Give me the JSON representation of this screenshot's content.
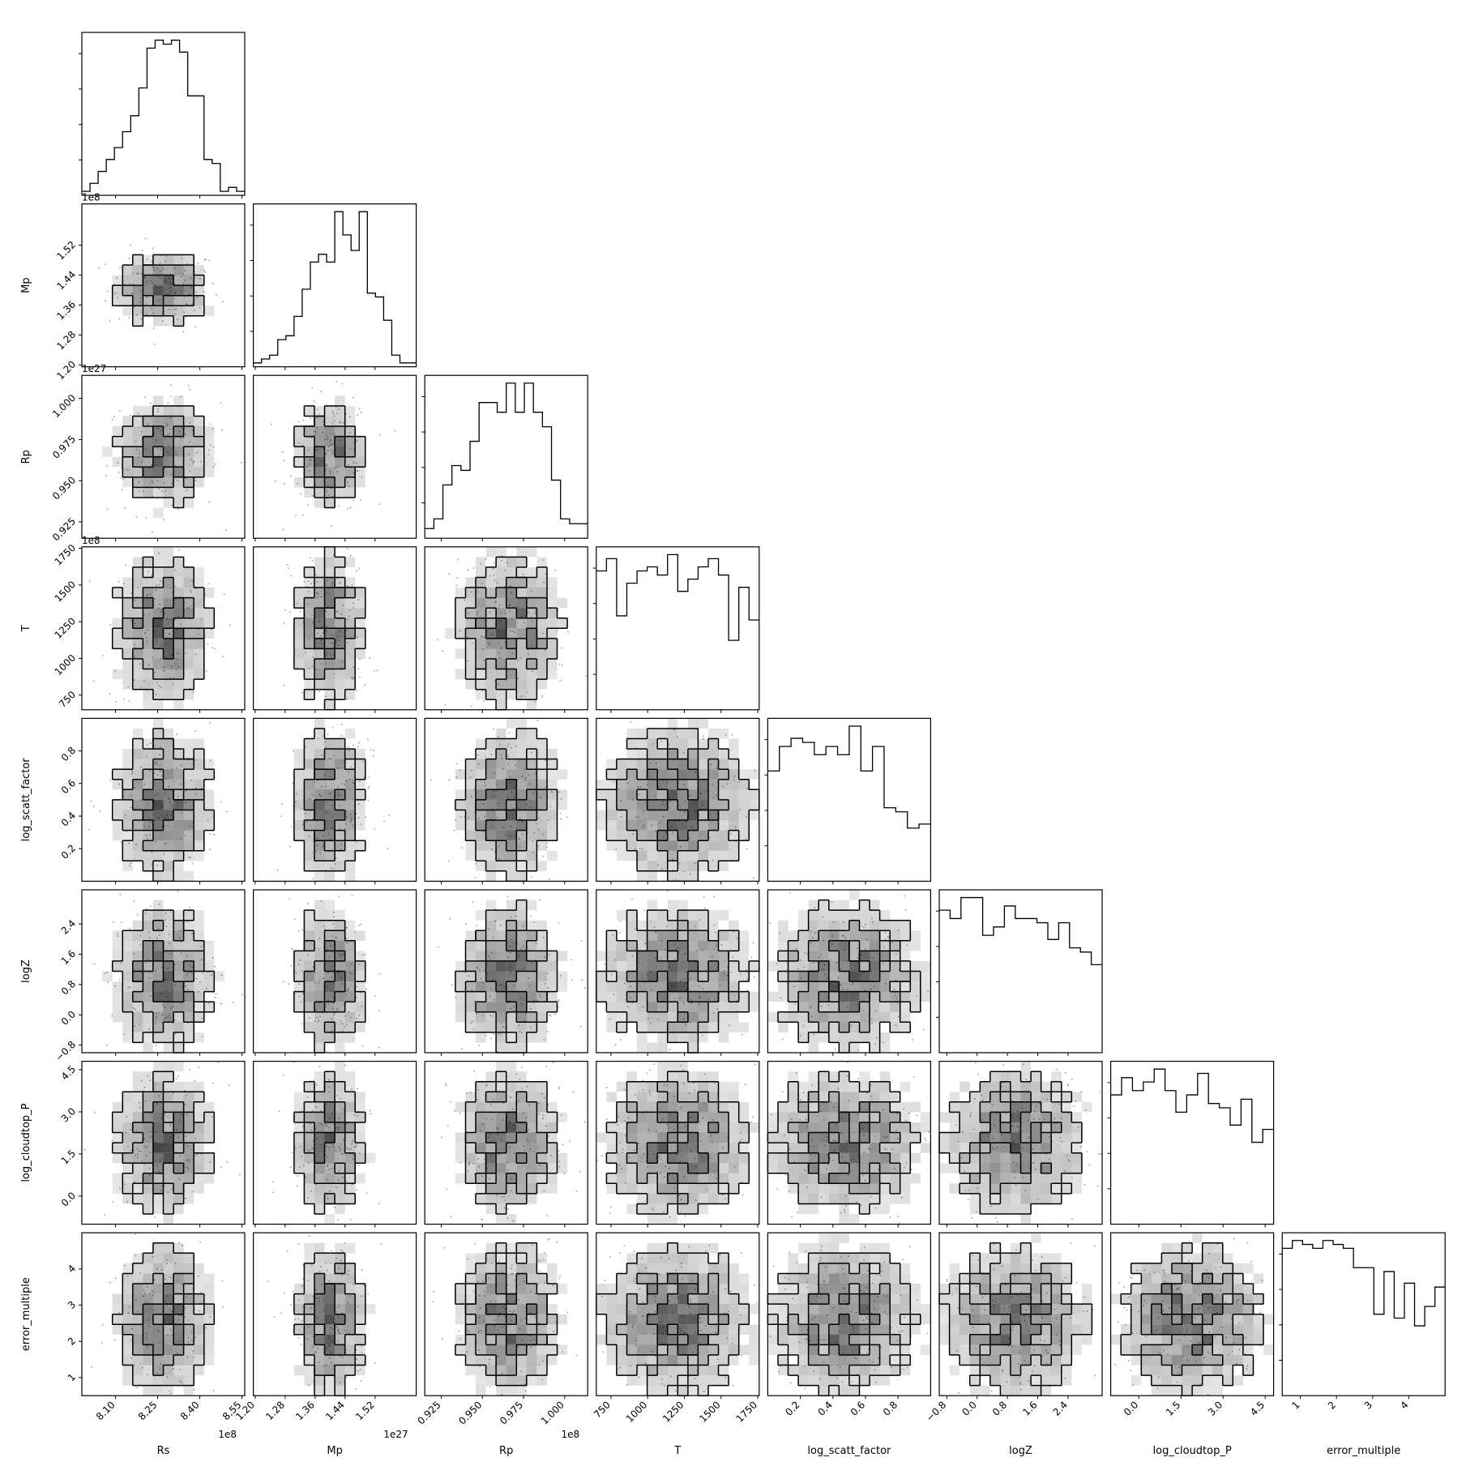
{
  "chart_data": {
    "type": "corner",
    "parameters": [
      {
        "label": "Rs",
        "range": [
          798000000.0,
          856000000.0
        ],
        "ticks": [
          810000000.0,
          825000000.0,
          840000000.0,
          855000000.0
        ],
        "tick_labels": [
          "8.10",
          "8.25",
          "8.40",
          "8.55"
        ],
        "offset_text": "1e8",
        "center": 827000000.0,
        "std": 10000000.0
      },
      {
        "label": "Mp",
        "range": [
          1.195e+27,
          1.63e+27
        ],
        "ticks": [
          1.2e+27,
          1.28e+27,
          1.36e+27,
          1.44e+27,
          1.52e+27
        ],
        "tick_labels": [
          "1.20",
          "1.28",
          "1.36",
          "1.44",
          "1.52"
        ],
        "offset_text": "1e27",
        "center": 1.4e+27,
        "std": 5.5e+25
      },
      {
        "label": "Rp",
        "range": [
          91500000.0,
          101400000.0
        ],
        "ticks": [
          92500000.0,
          95000000.0,
          97500000.0,
          100000000.0
        ],
        "tick_labels": [
          "0.925",
          "0.950",
          "0.975",
          "1.000"
        ],
        "offset_text": "1e8",
        "center": 96600000.0,
        "std": 1800000.0
      },
      {
        "label": "T",
        "range": [
          650,
          1760
        ],
        "ticks": [
          750,
          1000,
          1250,
          1500,
          1750
        ],
        "tick_labels": [
          "750",
          "1000",
          "1250",
          "1500",
          "1750"
        ],
        "offset_text": "",
        "center": 1200,
        "std": 300
      },
      {
        "label": "log_scatt_factor",
        "range": [
          0.0,
          1.0
        ],
        "ticks": [
          0.2,
          0.4,
          0.6,
          0.8
        ],
        "tick_labels": [
          "0.2",
          "0.4",
          "0.6",
          "0.8"
        ],
        "offset_text": "",
        "center": 0.48,
        "std": 0.27
      },
      {
        "label": "logZ",
        "range": [
          -1.0,
          3.3
        ],
        "ticks": [
          -0.8,
          0.0,
          0.8,
          1.6,
          2.4
        ],
        "tick_labels": [
          "−0.8",
          "0.0",
          "0.8",
          "1.6",
          "2.4"
        ],
        "offset_text": "",
        "center": 1.0,
        "std": 1.1
      },
      {
        "label": "log_cloudtop_P",
        "range": [
          -1.0,
          4.8
        ],
        "ticks": [
          0.0,
          1.5,
          3.0,
          4.5
        ],
        "tick_labels": [
          "0.0",
          "1.5",
          "3.0",
          "4.5"
        ],
        "offset_text": "",
        "center": 1.9,
        "std": 1.5
      },
      {
        "label": "error_multiple",
        "range": [
          0.5,
          5.0
        ],
        "ticks": [
          1,
          2,
          3,
          4
        ],
        "tick_labels": [
          "1",
          "2",
          "3",
          "4"
        ],
        "offset_text": "",
        "center": 2.6,
        "std": 1.2
      }
    ],
    "histograms": [
      [
        1,
        3,
        6,
        9,
        12,
        16,
        20,
        27,
        37,
        39,
        38,
        39,
        36,
        25,
        25,
        9,
        8,
        1,
        2,
        1
      ],
      [
        1,
        2,
        3,
        7,
        8,
        13,
        20,
        27,
        29,
        27,
        40,
        34,
        30,
        40,
        19,
        18,
        12,
        3,
        1,
        1
      ],
      [
        2,
        4,
        11,
        15,
        14,
        20,
        28,
        28,
        26,
        32,
        26,
        32,
        26,
        23,
        12,
        4,
        3,
        3
      ],
      [
        34,
        37,
        23,
        31,
        34,
        35,
        33,
        38,
        29,
        32,
        35,
        37,
        33,
        17,
        30,
        22
      ],
      [
        27,
        33,
        35,
        34,
        31,
        33,
        31,
        38,
        27,
        33,
        18,
        17,
        13,
        14
      ]
    ],
    "histograms_extra": [
      [
        34,
        32,
        37,
        37,
        28,
        30,
        35,
        32,
        32,
        31,
        27,
        31,
        25,
        24,
        21
      ],
      [
        30,
        34,
        31,
        33,
        36,
        31,
        26,
        30,
        35,
        28,
        27,
        23,
        29,
        19,
        22
      ],
      [
        38,
        40,
        39,
        38,
        40,
        39,
        38,
        33,
        33,
        21,
        32,
        20,
        29,
        18,
        23,
        28
      ]
    ]
  }
}
